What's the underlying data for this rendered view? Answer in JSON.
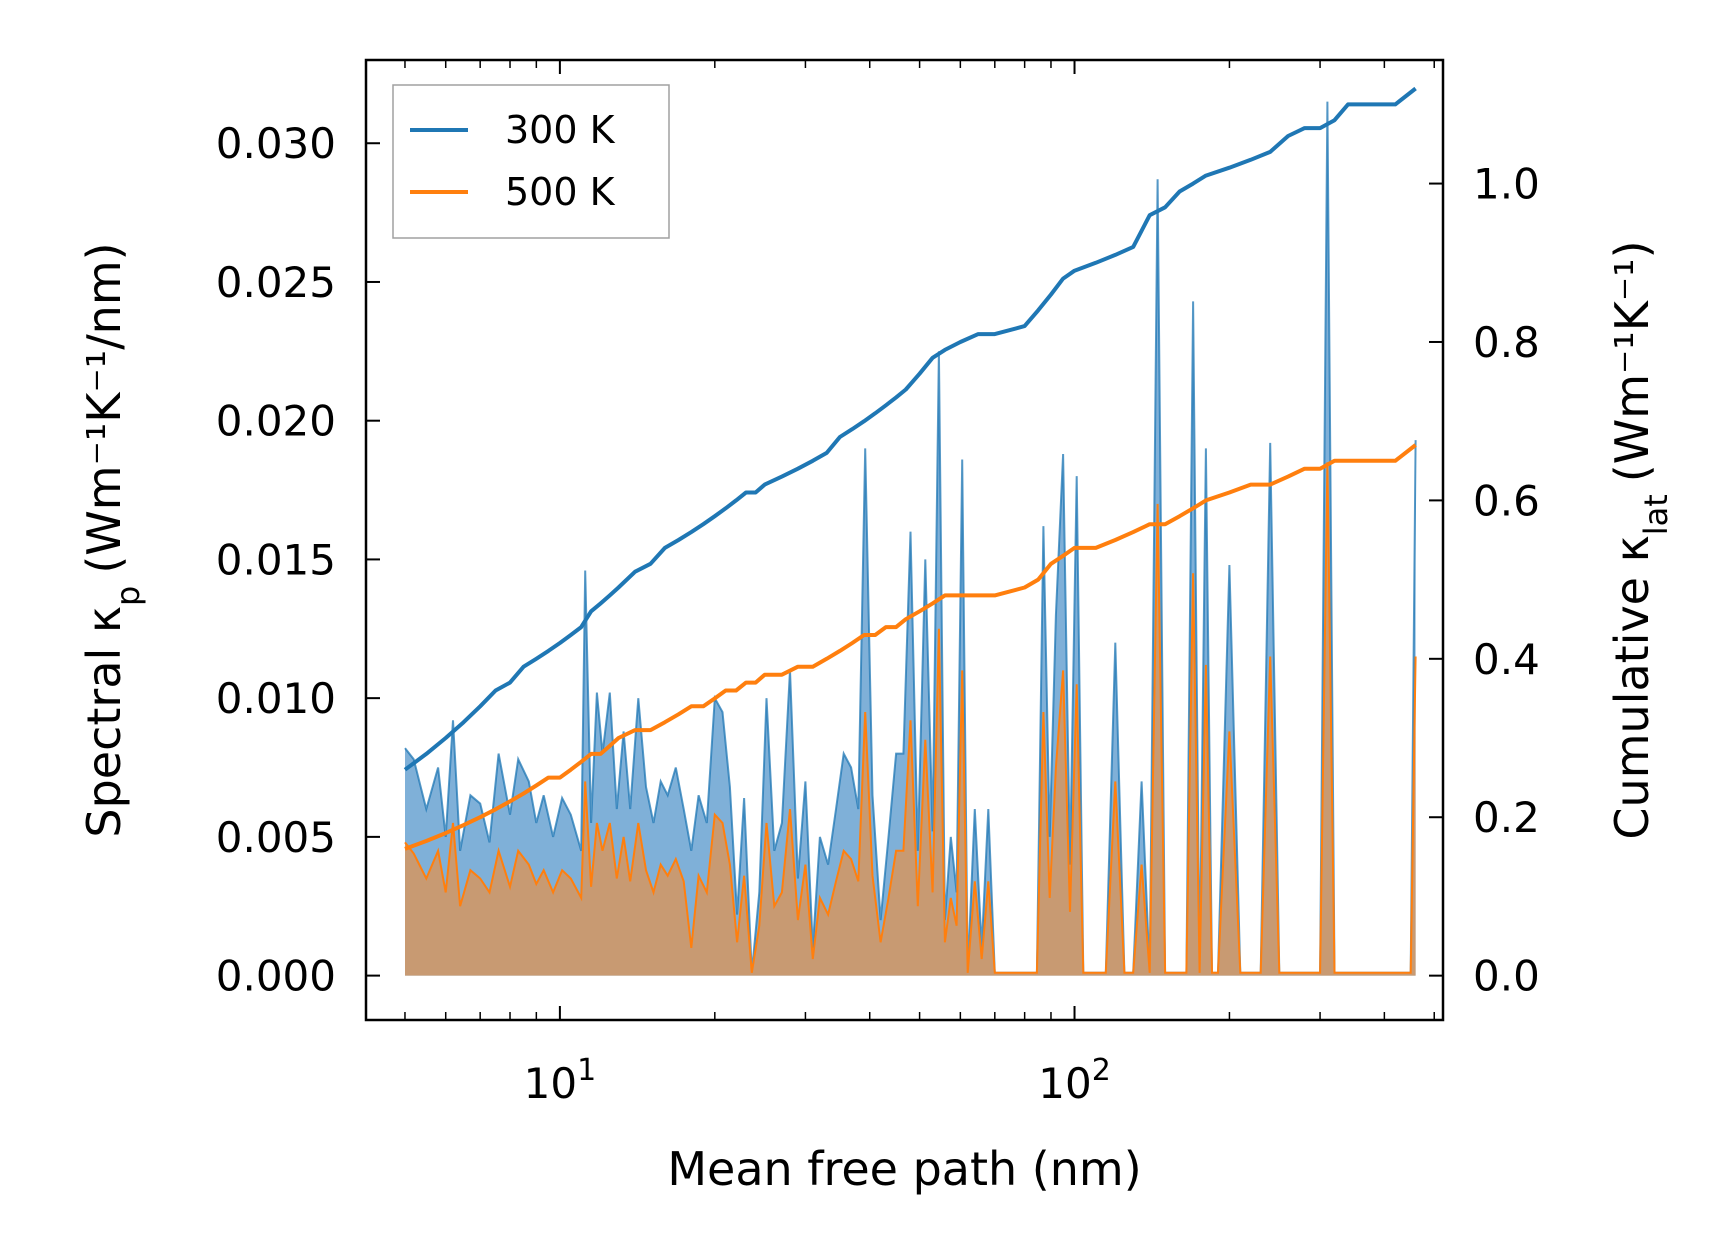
{
  "chart_data": {
    "type": "line",
    "title": "",
    "xlabel": "Mean free path (nm)",
    "ylabel_left": {
      "base": "Spectral κ",
      "sub": "p",
      "units": "(Wm⁻¹K⁻¹/nm)"
    },
    "ylabel_right": {
      "base": "Cumulative κ",
      "sub": "lat",
      "units": "(Wm⁻¹K⁻¹)"
    },
    "xscale": "log",
    "xlim": [
      4.2,
      520
    ],
    "ylim_left": [
      -0.0016,
      0.033
    ],
    "ylim_right": [
      -0.056,
      1.156
    ],
    "xticks": [
      {
        "value": 10,
        "label": "10",
        "exp": "1"
      },
      {
        "value": 100,
        "label": "10",
        "exp": "2"
      }
    ],
    "yticks_left": [
      "0.000",
      "0.005",
      "0.010",
      "0.015",
      "0.020",
      "0.025",
      "0.030"
    ],
    "yticks_right": [
      "0.0",
      "0.2",
      "0.4",
      "0.6",
      "0.8",
      "1.0"
    ],
    "legend": {
      "position": "top-left",
      "entries": [
        {
          "label": "300 K",
          "color": "#1f77b4"
        },
        {
          "label": "500 K",
          "color": "#ff7f0e"
        }
      ]
    },
    "colors": {
      "c300": "#1f77b4",
      "c500": "#ff7f0e",
      "fill300": "#7fb0d8",
      "fill500": "#c89a72"
    },
    "spectral_300K": {
      "x": [
        5.0,
        5.2,
        5.5,
        5.8,
        6.0,
        6.2,
        6.4,
        6.7,
        7.0,
        7.3,
        7.6,
        8.0,
        8.3,
        8.7,
        9.0,
        9.3,
        9.7,
        10.1,
        10.5,
        11.0,
        11.2,
        11.5,
        11.8,
        12.1,
        12.5,
        12.9,
        13.3,
        13.7,
        14.2,
        14.7,
        15.2,
        15.7,
        16.2,
        16.8,
        17.4,
        18.0,
        18.6,
        19.3,
        20.0,
        20.7,
        21.4,
        22.1,
        22.8,
        23.6,
        24.4,
        25.2,
        26.1,
        27.0,
        28.0,
        29.0,
        30.0,
        31.0,
        32.0,
        33.2,
        34.4,
        35.6,
        36.8,
        38.0,
        39.2,
        40.5,
        42.0,
        43.5,
        45.0,
        46.5,
        48.0,
        49.6,
        51.3,
        53.0,
        54.5,
        56.0,
        57.5,
        59.0,
        60.5,
        62.0,
        64.0,
        66.0,
        68.0,
        70.0,
        72.0,
        74.5,
        77.0,
        80.0,
        82.0,
        84.5,
        87.0,
        89.5,
        92.0,
        95.0,
        98.0,
        101.0,
        104.0,
        107.0,
        110.0,
        115.0,
        120.0,
        125.0,
        130.0,
        135.0,
        140.0,
        145.0,
        150.0,
        155.0,
        160.0,
        165.0,
        170.0,
        175.0,
        180.0,
        185.0,
        190.0,
        200.0,
        210.0,
        220.0,
        230.0,
        240.0,
        250.0,
        260.0,
        270.0,
        280.0,
        300.0,
        310.0,
        320.0,
        330.0,
        340.0,
        380.0,
        420.0,
        440.0,
        450.0,
        460.0
      ],
      "y": [
        0.0082,
        0.0078,
        0.006,
        0.0075,
        0.005,
        0.0092,
        0.0045,
        0.0065,
        0.0062,
        0.0048,
        0.008,
        0.0058,
        0.0078,
        0.007,
        0.0055,
        0.0065,
        0.005,
        0.0064,
        0.0058,
        0.0045,
        0.0146,
        0.0055,
        0.0102,
        0.008,
        0.0102,
        0.006,
        0.0088,
        0.006,
        0.01,
        0.0068,
        0.0055,
        0.007,
        0.0065,
        0.0075,
        0.006,
        0.0045,
        0.0065,
        0.0055,
        0.01,
        0.0095,
        0.0068,
        0.0022,
        0.0064,
        0.0001,
        0.003,
        0.01,
        0.0045,
        0.0055,
        0.011,
        0.0035,
        0.007,
        0.001,
        0.005,
        0.004,
        0.006,
        0.008,
        0.0075,
        0.006,
        0.019,
        0.0065,
        0.002,
        0.005,
        0.008,
        0.008,
        0.016,
        0.0045,
        0.015,
        0.0052,
        0.0225,
        0.002,
        0.005,
        0.003,
        0.0186,
        0.0001,
        0.006,
        0.001,
        0.006,
        0.0001,
        0.0001,
        0.0001,
        0.0001,
        0.0001,
        0.0001,
        0.0001,
        0.0162,
        0.005,
        0.013,
        0.0188,
        0.004,
        0.018,
        0.0001,
        0.0001,
        0.0001,
        0.0001,
        0.012,
        0.0001,
        0.0001,
        0.007,
        0.0001,
        0.0287,
        0.0001,
        0.0001,
        0.0001,
        0.0001,
        0.0243,
        0.0001,
        0.019,
        0.0001,
        0.0001,
        0.0148,
        0.0001,
        0.0001,
        0.0001,
        0.0192,
        0.0001,
        0.0001,
        0.0001,
        0.0001,
        0.0001,
        0.0315,
        0.0001,
        0.0001,
        0.0001,
        0.0001,
        0.0001,
        0.0001,
        0.0001,
        0.0193
      ]
    },
    "spectral_500K": {
      "x": [
        5.0,
        5.2,
        5.5,
        5.8,
        6.0,
        6.2,
        6.4,
        6.7,
        7.0,
        7.3,
        7.6,
        8.0,
        8.3,
        8.7,
        9.0,
        9.3,
        9.7,
        10.1,
        10.5,
        11.0,
        11.2,
        11.5,
        11.8,
        12.1,
        12.5,
        12.9,
        13.3,
        13.7,
        14.2,
        14.7,
        15.2,
        15.7,
        16.2,
        16.8,
        17.4,
        18.0,
        18.6,
        19.3,
        20.0,
        20.7,
        21.4,
        22.1,
        22.8,
        23.6,
        24.4,
        25.2,
        26.1,
        27.0,
        28.0,
        29.0,
        30.0,
        31.0,
        32.0,
        33.2,
        34.4,
        35.6,
        36.8,
        38.0,
        39.2,
        40.5,
        42.0,
        43.5,
        45.0,
        46.5,
        48.0,
        49.6,
        51.3,
        53.0,
        54.5,
        56.0,
        57.5,
        59.0,
        60.5,
        62.0,
        64.0,
        66.0,
        68.0,
        70.0,
        72.0,
        74.5,
        77.0,
        80.0,
        82.0,
        84.5,
        87.0,
        89.5,
        92.0,
        95.0,
        98.0,
        101.0,
        104.0,
        107.0,
        110.0,
        115.0,
        120.0,
        125.0,
        130.0,
        135.0,
        140.0,
        145.0,
        150.0,
        155.0,
        160.0,
        165.0,
        170.0,
        175.0,
        180.0,
        185.0,
        190.0,
        200.0,
        210.0,
        220.0,
        230.0,
        240.0,
        250.0,
        260.0,
        270.0,
        280.0,
        300.0,
        310.0,
        320.0,
        330.0,
        340.0,
        380.0,
        420.0,
        440.0,
        450.0,
        460.0
      ],
      "y": [
        0.0048,
        0.0044,
        0.0035,
        0.0045,
        0.003,
        0.0055,
        0.0025,
        0.0038,
        0.0035,
        0.003,
        0.0045,
        0.0032,
        0.0045,
        0.004,
        0.0033,
        0.0038,
        0.003,
        0.0038,
        0.0035,
        0.0028,
        0.007,
        0.0032,
        0.0055,
        0.0045,
        0.0055,
        0.0035,
        0.005,
        0.0034,
        0.0055,
        0.0038,
        0.003,
        0.004,
        0.0036,
        0.0042,
        0.0034,
        0.001,
        0.0036,
        0.003,
        0.0058,
        0.0055,
        0.004,
        0.0012,
        0.0036,
        0.0001,
        0.0018,
        0.0055,
        0.0025,
        0.003,
        0.006,
        0.002,
        0.004,
        0.0006,
        0.0028,
        0.0022,
        0.0034,
        0.0045,
        0.0042,
        0.0034,
        0.0095,
        0.0036,
        0.0012,
        0.0028,
        0.0045,
        0.0045,
        0.0092,
        0.0025,
        0.0085,
        0.003,
        0.0125,
        0.0012,
        0.0028,
        0.0018,
        0.011,
        0.0001,
        0.0034,
        0.0006,
        0.0034,
        0.0001,
        0.0001,
        0.0001,
        0.0001,
        0.0001,
        0.0001,
        0.0001,
        0.0095,
        0.0028,
        0.0075,
        0.011,
        0.0023,
        0.0105,
        0.0001,
        0.0001,
        0.0001,
        0.0001,
        0.007,
        0.0001,
        0.0001,
        0.004,
        0.0001,
        0.017,
        0.0001,
        0.0001,
        0.0001,
        0.0001,
        0.0145,
        0.0001,
        0.0112,
        0.0001,
        0.0001,
        0.0088,
        0.0001,
        0.0001,
        0.0001,
        0.0115,
        0.0001,
        0.0001,
        0.0001,
        0.0001,
        0.0001,
        0.0185,
        0.0001,
        0.0001,
        0.0001,
        0.0001,
        0.0001,
        0.0001,
        0.0001,
        0.0115
      ]
    },
    "cumulative_300K": {
      "x": [
        5.0,
        5.5,
        6.0,
        6.5,
        7.0,
        7.5,
        8.0,
        8.5,
        9.0,
        9.5,
        10.0,
        10.5,
        11.0,
        11.5,
        12.0,
        12.5,
        13.0,
        14.0,
        15.0,
        16.0,
        17.0,
        18.0,
        19.0,
        20.0,
        21.0,
        22.0,
        23.0,
        24.0,
        25.0,
        27.0,
        29.0,
        31.0,
        33.0,
        35.0,
        37.0,
        39.0,
        41.0,
        43.0,
        45.0,
        47.0,
        50.0,
        53.0,
        56.0,
        60.0,
        65.0,
        70.0,
        80.0,
        85.0,
        90.0,
        95.0,
        100.0,
        110.0,
        120.0,
        130.0,
        140.0,
        150.0,
        160.0,
        170.0,
        180.0,
        200.0,
        220.0,
        240.0,
        260.0,
        280.0,
        300.0,
        320.0,
        340.0,
        380.0,
        420.0,
        460.0
      ],
      "y": [
        0.26,
        0.28,
        0.3,
        0.32,
        0.34,
        0.36,
        0.37,
        0.39,
        0.4,
        0.41,
        0.42,
        0.43,
        0.44,
        0.46,
        0.47,
        0.48,
        0.49,
        0.51,
        0.52,
        0.54,
        0.55,
        0.56,
        0.57,
        0.58,
        0.59,
        0.6,
        0.61,
        0.61,
        0.62,
        0.63,
        0.64,
        0.65,
        0.66,
        0.68,
        0.69,
        0.7,
        0.71,
        0.72,
        0.73,
        0.74,
        0.76,
        0.78,
        0.79,
        0.8,
        0.81,
        0.81,
        0.82,
        0.84,
        0.86,
        0.88,
        0.89,
        0.9,
        0.91,
        0.92,
        0.96,
        0.97,
        0.99,
        1.0,
        1.01,
        1.02,
        1.03,
        1.04,
        1.06,
        1.07,
        1.07,
        1.08,
        1.1,
        1.1,
        1.1,
        1.12
      ]
    },
    "cumulative_500K": {
      "x": [
        5.0,
        5.5,
        6.0,
        6.5,
        7.0,
        7.5,
        8.0,
        8.5,
        9.0,
        9.5,
        10.0,
        10.5,
        11.0,
        11.5,
        12.0,
        12.5,
        13.0,
        14.0,
        15.0,
        16.0,
        17.0,
        18.0,
        19.0,
        20.0,
        21.0,
        22.0,
        23.0,
        24.0,
        25.0,
        27.0,
        29.0,
        31.0,
        33.0,
        35.0,
        37.0,
        39.0,
        41.0,
        43.0,
        45.0,
        47.0,
        50.0,
        53.0,
        56.0,
        60.0,
        65.0,
        70.0,
        80.0,
        85.0,
        90.0,
        95.0,
        100.0,
        110.0,
        120.0,
        130.0,
        140.0,
        150.0,
        160.0,
        170.0,
        180.0,
        200.0,
        220.0,
        240.0,
        260.0,
        280.0,
        300.0,
        320.0,
        340.0,
        380.0,
        420.0,
        460.0
      ],
      "y": [
        0.16,
        0.17,
        0.18,
        0.19,
        0.2,
        0.21,
        0.22,
        0.23,
        0.24,
        0.25,
        0.25,
        0.26,
        0.27,
        0.28,
        0.28,
        0.29,
        0.3,
        0.31,
        0.31,
        0.32,
        0.33,
        0.34,
        0.34,
        0.35,
        0.36,
        0.36,
        0.37,
        0.37,
        0.38,
        0.38,
        0.39,
        0.39,
        0.4,
        0.41,
        0.42,
        0.43,
        0.43,
        0.44,
        0.44,
        0.45,
        0.46,
        0.47,
        0.48,
        0.48,
        0.48,
        0.48,
        0.49,
        0.5,
        0.52,
        0.53,
        0.54,
        0.54,
        0.55,
        0.56,
        0.57,
        0.57,
        0.58,
        0.59,
        0.6,
        0.61,
        0.62,
        0.62,
        0.63,
        0.64,
        0.64,
        0.65,
        0.65,
        0.65,
        0.65,
        0.67
      ]
    }
  }
}
